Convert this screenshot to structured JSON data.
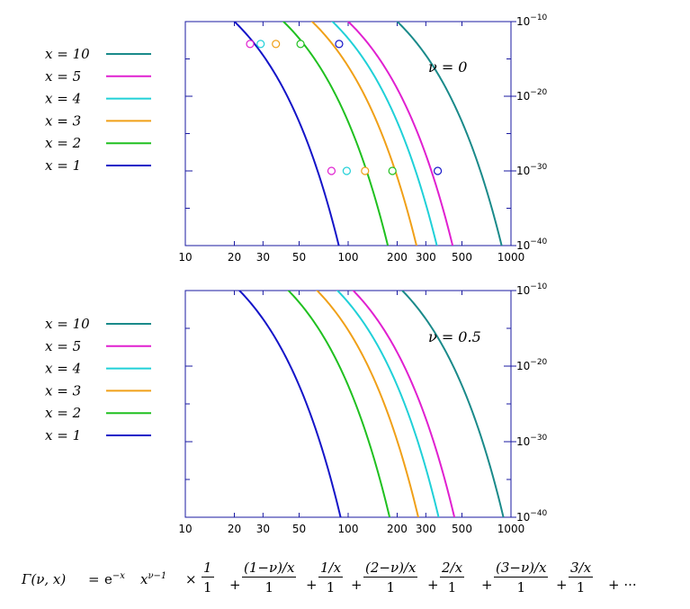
{
  "chart_data": [
    {
      "type": "line",
      "panel_label": "ν = 0",
      "x_scale": "log",
      "y_scale": "log",
      "xlim": [
        10,
        1000
      ],
      "ylim": [
        1e-40,
        1e-10
      ],
      "x_ticks": [
        "10",
        "20",
        "30",
        "50",
        "100",
        "200",
        "300",
        "500",
        "1000"
      ],
      "y_ticks": [
        {
          "base": "10",
          "exp": "−10"
        },
        {
          "base": "10",
          "exp": "−20"
        },
        {
          "base": "10",
          "exp": "−30"
        },
        {
          "base": "10",
          "exp": "−40"
        }
      ],
      "legend_placement": "left",
      "series": [
        {
          "name": "x = 10",
          "color": "#1a8a8a"
        },
        {
          "name": "x = 5",
          "color": "#e020d0"
        },
        {
          "name": "x = 4",
          "color": "#20d0d8"
        },
        {
          "name": "x = 3",
          "color": "#f0a018"
        },
        {
          "name": "x = 2",
          "color": "#20c020"
        },
        {
          "name": "x = 1",
          "color": "#1414c8"
        }
      ],
      "markers": [
        {
          "series": "x = 5",
          "x": [
            25,
            79
          ],
          "y": [
            1e-13,
            1e-30
          ]
        },
        {
          "series": "x = 4",
          "x": [
            29,
            98
          ],
          "y": [
            1e-13,
            1e-30
          ]
        },
        {
          "series": "x = 3",
          "x": [
            36,
            127
          ],
          "y": [
            1e-13,
            1e-30
          ]
        },
        {
          "series": "x = 2",
          "x": [
            51,
            187
          ],
          "y": [
            1e-13,
            1e-30
          ]
        },
        {
          "series": "x = 1",
          "x": [
            88,
            355
          ],
          "y": [
            1e-13,
            1e-30
          ]
        }
      ]
    },
    {
      "type": "line",
      "panel_label": "ν = 0.5",
      "x_scale": "log",
      "y_scale": "log",
      "xlim": [
        10,
        1000
      ],
      "ylim": [
        1e-40,
        1e-10
      ],
      "x_ticks": [
        "10",
        "20",
        "30",
        "50",
        "100",
        "200",
        "300",
        "500",
        "1000"
      ],
      "y_ticks": [
        {
          "base": "10",
          "exp": "−10"
        },
        {
          "base": "10",
          "exp": "−20"
        },
        {
          "base": "10",
          "exp": "−30"
        },
        {
          "base": "10",
          "exp": "−40"
        }
      ],
      "legend_placement": "left",
      "series": [
        {
          "name": "x = 10",
          "color": "#1a8a8a"
        },
        {
          "name": "x = 5",
          "color": "#e020d0"
        },
        {
          "name": "x = 4",
          "color": "#20d0d8"
        },
        {
          "name": "x = 3",
          "color": "#f0a018"
        },
        {
          "name": "x = 2",
          "color": "#20c020"
        },
        {
          "name": "x = 1",
          "color": "#1414c8"
        }
      ],
      "markers": []
    }
  ],
  "formula": {
    "lhs": "Γ(ν, x)",
    "eq": "=",
    "exp_base": "e",
    "exp_power": "−x",
    "x_base": "x",
    "x_power": "ν−1",
    "times": "×",
    "terms": [
      {
        "num": "1",
        "den": "1"
      },
      {
        "num": "(1−ν)/x",
        "den": "1"
      },
      {
        "num": "1/x",
        "den": "1"
      },
      {
        "num": "(2−ν)/x",
        "den": "1"
      },
      {
        "num": "2/x",
        "den": "1"
      },
      {
        "num": "(3−ν)/x",
        "den": "1"
      },
      {
        "num": "3/x",
        "den": "1"
      }
    ],
    "plus": "+",
    "ellipsis": "+ ···"
  }
}
